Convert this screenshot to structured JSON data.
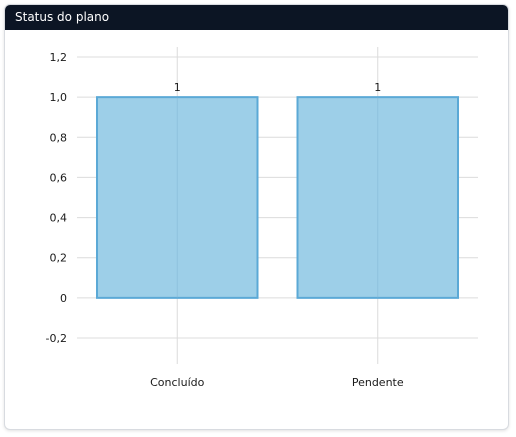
{
  "card": {
    "title": "Status do plano"
  },
  "chart_data": {
    "type": "bar",
    "categories": [
      "Concluído",
      "Pendente"
    ],
    "values": [
      1,
      1
    ],
    "data_labels": [
      "1",
      "1"
    ],
    "y_ticks": [
      "1,2",
      "1,0",
      "0,8",
      "0,6",
      "0,4",
      "0,2",
      "0",
      "-0,2"
    ],
    "y_tick_values": [
      1.2,
      1.0,
      0.8,
      0.6,
      0.4,
      0.2,
      0,
      -0.2
    ],
    "ylim": [
      -0.2,
      1.2
    ],
    "grid": true,
    "legend": "none",
    "colors": {
      "bar_fill": "#9dcfe8",
      "bar_stroke": "#5ba9d6",
      "grid": "#dcdcdc",
      "axis_text": "#1a1a1a",
      "header_bg": "#0c1524"
    }
  }
}
